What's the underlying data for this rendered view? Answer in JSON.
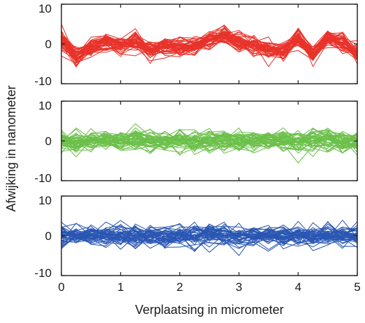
{
  "chart_data": {
    "type": "line",
    "xlabel": "Verplaatsing in micrometer",
    "ylabel": "Afwijking in nanometer",
    "xlim": [
      0,
      5
    ],
    "x_ticks": [
      "0",
      "1",
      "2",
      "3",
      "4",
      "5"
    ],
    "grid": false,
    "panels": [
      {
        "name": "panel-red",
        "color": "#e8332a",
        "ylim": [
          -10,
          10
        ],
        "y_ticks": [
          "10",
          "0",
          "-10"
        ],
        "x": [
          0,
          0.25,
          0.5,
          0.75,
          1,
          1.25,
          1.5,
          1.75,
          2,
          2.25,
          2.5,
          2.75,
          3,
          3.25,
          3.5,
          3.75,
          4,
          4.25,
          4.5,
          4.75,
          5
        ],
        "mean_trend": [
          1,
          -3,
          -1,
          0.5,
          0,
          0.5,
          -1.5,
          -0.5,
          -1,
          -0.5,
          1,
          2,
          0.5,
          -0.5,
          -1.5,
          -2,
          1.5,
          -2.5,
          1.5,
          0,
          -2
        ],
        "spread": 2.0,
        "line_count": 45
      },
      {
        "name": "panel-green",
        "color": "#6cc04a",
        "ylim": [
          -10,
          10
        ],
        "y_ticks": [
          "10",
          "0",
          "-10"
        ],
        "x": [
          0,
          0.25,
          0.5,
          0.75,
          1,
          1.25,
          1.5,
          1.75,
          2,
          2.25,
          2.5,
          2.75,
          3,
          3.25,
          3.5,
          3.75,
          4,
          4.25,
          4.5,
          4.75,
          5
        ],
        "mean_trend": [
          0,
          0,
          0,
          0,
          0,
          0,
          0,
          0,
          0,
          0,
          0,
          0,
          0,
          0,
          0,
          0,
          0,
          0,
          0,
          0,
          0
        ],
        "spread": 2.3,
        "line_count": 45
      },
      {
        "name": "panel-blue",
        "color": "#2a56b3",
        "ylim": [
          -10,
          10
        ],
        "y_ticks": [
          "10",
          "0",
          "-10"
        ],
        "x": [
          0,
          0.25,
          0.5,
          0.75,
          1,
          1.25,
          1.5,
          1.75,
          2,
          2.25,
          2.5,
          2.75,
          3,
          3.25,
          3.5,
          3.75,
          4,
          4.25,
          4.5,
          4.75,
          5
        ],
        "mean_trend": [
          0,
          0,
          0,
          0,
          0,
          0,
          0,
          0,
          0,
          0,
          0,
          0,
          0,
          0,
          0,
          0,
          0,
          0,
          0,
          0,
          0
        ],
        "spread": 2.2,
        "line_count": 45
      }
    ]
  }
}
